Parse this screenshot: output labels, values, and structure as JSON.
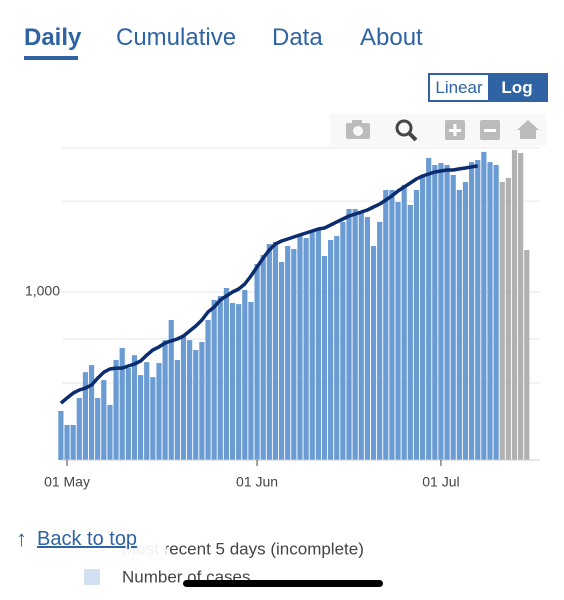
{
  "tabs": [
    "Daily",
    "Cumulative",
    "Data",
    "About"
  ],
  "scale_toggle": [
    "Linear",
    "Log"
  ],
  "back_to_top": "Back to top",
  "chart_data": {
    "type": "bar",
    "log_scale": true,
    "categories": [
      null,
      "01 May",
      null,
      null,
      null,
      null,
      null,
      null,
      null,
      null,
      null,
      null,
      null,
      null,
      null,
      null,
      null,
      null,
      null,
      null,
      null,
      null,
      null,
      null,
      null,
      null,
      null,
      null,
      null,
      null,
      null,
      null,
      "01 Jun",
      null,
      null,
      null,
      null,
      null,
      null,
      null,
      null,
      null,
      null,
      null,
      null,
      null,
      null,
      null,
      null,
      null,
      null,
      null,
      null,
      null,
      null,
      null,
      null,
      null,
      null,
      null,
      null,
      null,
      "01 Jul",
      null,
      null,
      null,
      null,
      null,
      null,
      null,
      null,
      null,
      null,
      null,
      null,
      null,
      null
    ],
    "series": [
      {
        "name": "Number of cases",
        "color": "#6a9bd3",
        "values": [
          404,
          363,
          363,
          446,
          543,
          573,
          446,
          511,
          423,
          596,
          653,
          560,
          618,
          531,
          586,
          523,
          582,
          693,
          808,
          596,
          721,
          693,
          643,
          683,
          808,
          941,
          970,
          1031,
          920,
          912,
          1015,
          927,
          1238,
          1326,
          1442,
          1464,
          1257,
          1420,
          1388,
          1532,
          1509,
          1580,
          1617,
          1316,
          1486,
          1532,
          1706,
          1883,
          1883,
          1855,
          1772,
          1420,
          1706,
          2176,
          2176,
          1986,
          2262,
          1941,
          2176,
          2440,
          2779,
          2634,
          2673,
          2634,
          2440,
          2176,
          2312,
          2692,
          2735,
          2909,
          2692,
          2634,
          null,
          null,
          null,
          null,
          null
        ]
      },
      {
        "name": "Most recent 5 days (incomplete)",
        "color": "#b1b1b1",
        "values": [
          null,
          null,
          null,
          null,
          null,
          null,
          null,
          null,
          null,
          null,
          null,
          null,
          null,
          null,
          null,
          null,
          null,
          null,
          null,
          null,
          null,
          null,
          null,
          null,
          null,
          null,
          null,
          null,
          null,
          null,
          null,
          null,
          null,
          null,
          null,
          null,
          null,
          null,
          null,
          null,
          null,
          null,
          null,
          null,
          null,
          null,
          null,
          null,
          null,
          null,
          null,
          null,
          null,
          null,
          null,
          null,
          null,
          null,
          null,
          null,
          null,
          null,
          null,
          null,
          null,
          null,
          null,
          null,
          null,
          null,
          null,
          null,
          2312,
          2384,
          2951,
          2884,
          1377
        ]
      },
      {
        "type": "line",
        "color": "#0b2c6e",
        "values": [
          429,
          446,
          463,
          474,
          481,
          492,
          519,
          543,
          556,
          560,
          560,
          569,
          578,
          591,
          618,
          643,
          658,
          678,
          689,
          699,
          715,
          743,
          772,
          808,
          859,
          892,
          941,
          970,
          1000,
          1023,
          1063,
          1130,
          1210,
          1296,
          1377,
          1442,
          1475,
          1498,
          1521,
          1545,
          1568,
          1592,
          1617,
          1629,
          1667,
          1706,
          1745,
          1785,
          1811,
          1840,
          1869,
          1911,
          1955,
          2017,
          2080,
          2160,
          2228,
          2296,
          2368,
          2421,
          2459,
          2496,
          2515,
          2535,
          2535,
          2555,
          2574,
          2594,
          2614,
          null,
          null,
          null,
          null,
          null,
          null,
          null,
          null
        ]
      }
    ],
    "ylim": [
      278,
      3259
    ],
    "yticks": [
      {
        "value": 1000,
        "label": "1,000"
      }
    ],
    "ygrid": [
      500,
      700,
      2000,
      3000
    ],
    "grid": true
  }
}
